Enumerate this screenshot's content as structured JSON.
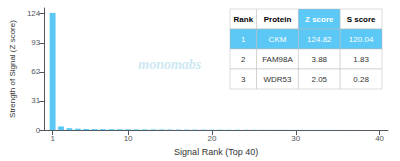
{
  "chart_data": {
    "type": "bar",
    "x": [
      1,
      2,
      3,
      4,
      5,
      6,
      7,
      8,
      9,
      10,
      11,
      12,
      13,
      14,
      15,
      16,
      17,
      18,
      19,
      20,
      21,
      22,
      23,
      24,
      25,
      26,
      27,
      28,
      29,
      30,
      31,
      32,
      33,
      34,
      35,
      36,
      37,
      38,
      39,
      40
    ],
    "values": [
      124.82,
      3.88,
      2.05,
      1.5,
      1.2,
      1.1,
      1.0,
      0.95,
      0.9,
      0.85,
      0.8,
      0.75,
      0.7,
      0.65,
      0.6,
      0.55,
      0.5,
      0.48,
      0.46,
      0.44,
      0.42,
      0.4,
      0.38,
      0.36,
      0.34,
      0.32,
      0.3,
      0.28,
      0.26,
      0.24,
      0.22,
      0.2,
      0.18,
      0.16,
      0.14,
      0.12,
      0.1,
      0.08,
      0.06,
      0.04
    ],
    "color": "#5bc8f5",
    "xlabel": "Signal Rank (Top 40)",
    "ylabel": "Strength of Signal (Z score)",
    "xlim": [
      0,
      41
    ],
    "xticks": [
      1,
      10,
      20,
      30,
      40
    ],
    "ylim": [
      0,
      130
    ],
    "yticks": [
      0,
      31,
      62,
      93,
      124
    ],
    "grid": false,
    "annotations": [
      {
        "text": "monomabs",
        "color": "#cde8f2"
      }
    ],
    "table": {
      "headers": [
        "Rank",
        "Protein",
        "Z score",
        "S score"
      ],
      "rows": [
        [
          "1",
          "CKM",
          "124.82",
          "120.04"
        ],
        [
          "2",
          "FAM98A",
          "3.88",
          "1.83"
        ],
        [
          "3",
          "WDR53",
          "2.05",
          "0.28"
        ]
      ]
    }
  }
}
